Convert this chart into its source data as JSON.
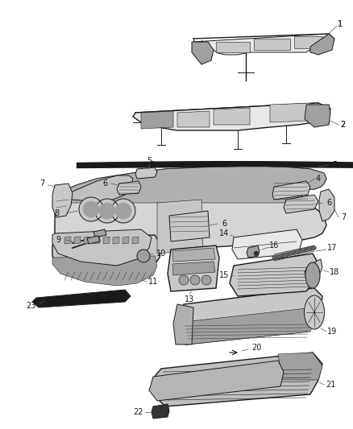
{
  "bg": "#ffffff",
  "lc": "#1a1a1a",
  "gray_light": "#e8e8e8",
  "gray_mid": "#c8c8c8",
  "gray_dark": "#a0a0a0",
  "gray_vdark": "#606060",
  "figsize": [
    4.38,
    5.33
  ],
  "dpi": 100,
  "fs": 7.0,
  "fs_small": 6.0
}
